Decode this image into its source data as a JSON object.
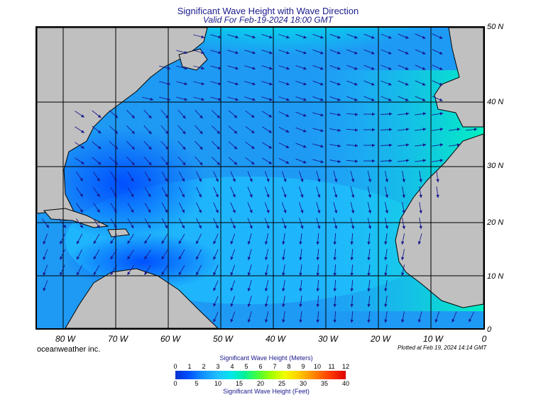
{
  "title": "Significant Wave Height with Wave Direction",
  "subtitle": "Valid For Feb-19-2024 18:00 GMT",
  "lon_labels": [
    "80 W",
    "70 W",
    "60 W",
    "50 W",
    "40 W",
    "30 W",
    "20 W",
    "10 W",
    "0"
  ],
  "lat_labels": [
    "50 N",
    "40 N",
    "30 N",
    "20 N",
    "10 N",
    "0"
  ],
  "brand": "oceanweather inc.",
  "plotted": "Plotted at Feb 19, 2024 14:14 GMT",
  "colorbar": {
    "meters_title": "Significant Wave Height (Meters)",
    "feet_title": "Significant Wave Height (Feet)",
    "meters_ticks": [
      "0",
      "1",
      "2",
      "3",
      "4",
      "5",
      "6",
      "7",
      "8",
      "9",
      "10",
      "11",
      "12"
    ],
    "feet_ticks": [
      "0",
      "5",
      "10",
      "15",
      "20",
      "25",
      "30",
      "35",
      "40"
    ]
  },
  "colors": {
    "land": "#c0c0c0",
    "ocean_low": "#0050ff",
    "ocean_mid": "#20c0ff",
    "ocean_high": "#00f0a0",
    "peak": "#ff2000",
    "arrow": "#1a1a8c"
  }
}
